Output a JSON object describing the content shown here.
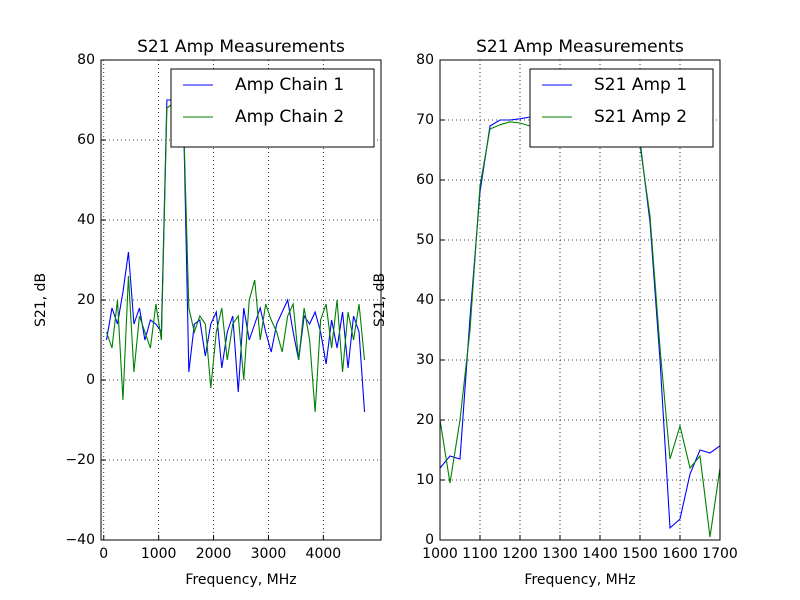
{
  "chart_data": [
    {
      "type": "line",
      "title": "S21 Amp Measurements",
      "x_label": "Frequency, MHz",
      "y_label": "S21, dB",
      "x": [
        50,
        150,
        250,
        350,
        450,
        550,
        650,
        750,
        850,
        950,
        1050,
        1150,
        1250,
        1350,
        1450,
        1550,
        1650,
        1750,
        1850,
        1950,
        2050,
        2150,
        2250,
        2350,
        2450,
        2550,
        2650,
        2750,
        2850,
        2950,
        3050,
        3150,
        3250,
        3350,
        3450,
        3550,
        3650,
        3750,
        3850,
        3950,
        4050,
        4150,
        4250,
        4350,
        4450,
        4550,
        4650,
        4750
      ],
      "series": [
        {
          "name": "Amp Chain 1",
          "color": "#0000ff",
          "values": [
            10,
            18,
            14,
            22,
            32,
            14,
            18,
            10,
            15,
            14,
            12,
            70,
            70,
            69,
            68,
            2,
            14,
            15,
            6,
            14,
            17,
            3,
            12,
            16,
            -3,
            18,
            10,
            14,
            18,
            12,
            7,
            14,
            17,
            20,
            12,
            5,
            16,
            14,
            17,
            12,
            4,
            15,
            8,
            17,
            3,
            16,
            12,
            -8
          ]
        },
        {
          "name": "Amp Chain 2",
          "color": "#008000",
          "values": [
            12,
            8,
            20,
            -5,
            26,
            2,
            16,
            12,
            8,
            19,
            10,
            68,
            69,
            68,
            67,
            18,
            12,
            16,
            14,
            -2,
            12,
            18,
            5,
            14,
            16,
            0,
            20,
            25,
            10,
            19,
            15,
            12,
            7,
            16,
            19,
            5,
            18,
            10,
            -8,
            15,
            19,
            8,
            20,
            2,
            17,
            10,
            19,
            5
          ]
        }
      ],
      "xlim": [
        -50,
        5050
      ],
      "xticks": [
        0,
        1000,
        2000,
        3000,
        4000
      ],
      "ylim": [
        -40,
        80
      ],
      "yticks": [
        {
          "value": -40,
          "label": "−40"
        },
        {
          "value": -20,
          "label": "−20"
        },
        0,
        20,
        40,
        60,
        80
      ],
      "grid": true,
      "legend": "upper right"
    },
    {
      "type": "line",
      "title": "S21 Amp Measurements",
      "x_label": "Frequency, MHz",
      "y_label": "S21, dB",
      "x": [
        1000,
        1025,
        1050,
        1075,
        1100,
        1125,
        1150,
        1175,
        1200,
        1225,
        1250,
        1275,
        1300,
        1325,
        1350,
        1375,
        1400,
        1425,
        1450,
        1475,
        1500,
        1525,
        1550,
        1575,
        1600,
        1625,
        1650,
        1675,
        1700
      ],
      "series": [
        {
          "name": "S21 Amp 1",
          "color": "#0000ff",
          "values": [
            12,
            14,
            13.5,
            37,
            58,
            69,
            70,
            70,
            70.2,
            70.5,
            70.3,
            70,
            69.5,
            69,
            68.5,
            67.8,
            67.8,
            67.5,
            67,
            67,
            66.5,
            53,
            30,
            2,
            3.5,
            11,
            15,
            14.5,
            15.7
          ]
        },
        {
          "name": "S21 Amp 2",
          "color": "#008000",
          "values": [
            20,
            9.5,
            20,
            35,
            59,
            68.5,
            69.2,
            69.7,
            69.5,
            69,
            68.8,
            68.5,
            68,
            68,
            67.8,
            67.5,
            67.8,
            67,
            66.5,
            66,
            65.8,
            54,
            32,
            13.5,
            19,
            12,
            14,
            0.5,
            12
          ]
        }
      ],
      "xlim": [
        1000,
        1700
      ],
      "xticks": [
        1000,
        1100,
        1200,
        1300,
        1400,
        1500,
        1600,
        1700
      ],
      "ylim": [
        0,
        80
      ],
      "yticks": [
        0,
        10,
        20,
        30,
        40,
        50,
        60,
        70,
        80
      ],
      "grid": true,
      "legend": "upper right"
    }
  ]
}
